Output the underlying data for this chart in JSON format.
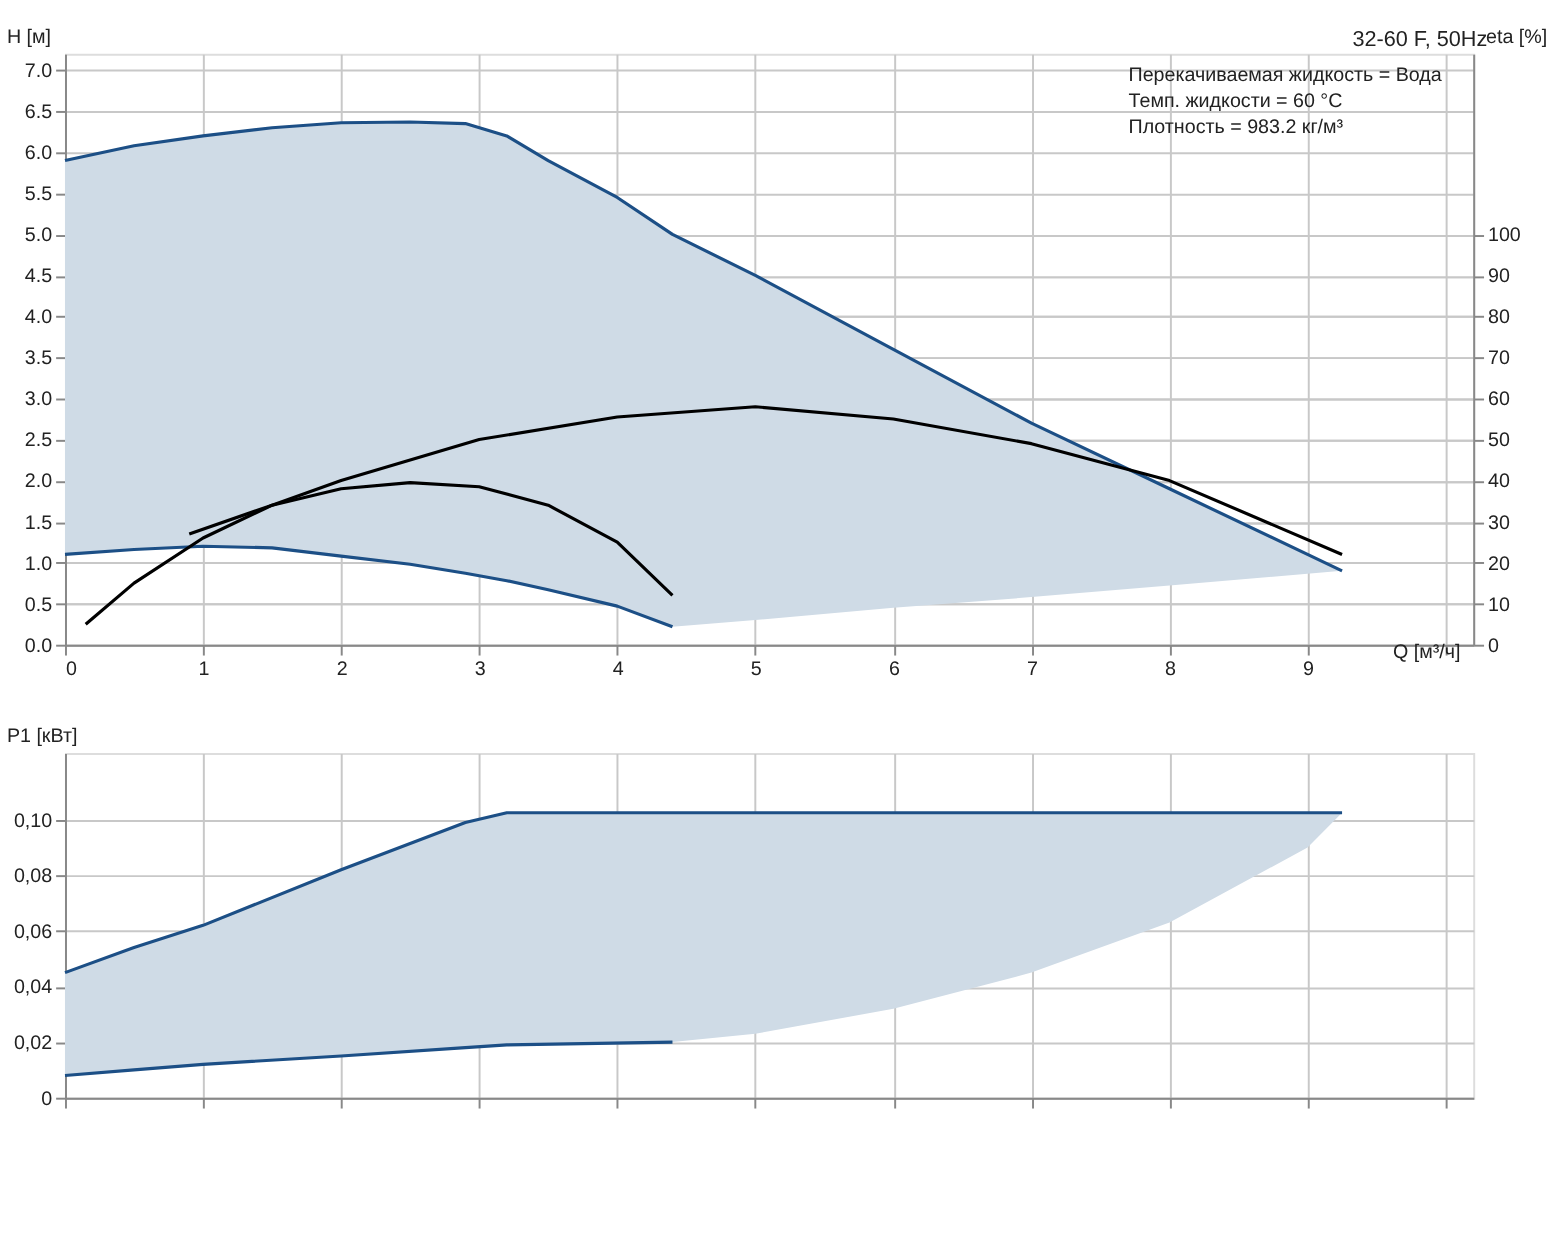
{
  "chart_data": [
    {
      "type": "line",
      "title": "32-60 F, 50Hz",
      "xlabel": "Q [м³/ч]",
      "ylabel": "H [м]",
      "y2label": "eta [%]",
      "annotations": [
        "Перекачиваемая жидкость = Вода",
        "Темп. жидкости = 60 °C",
        "Плотность = 983.2 кг/м³"
      ],
      "xlim": [
        0,
        10.2
      ],
      "xticks": [
        0,
        1,
        2,
        3,
        4,
        5,
        6,
        7,
        8,
        9,
        {
          "value": 10,
          "label": null
        }
      ],
      "ylim": [
        0,
        7.2
      ],
      "yticks": [
        {
          "value": 0,
          "label": "0.0"
        },
        0.5,
        {
          "value": 1,
          "label": "1.0"
        },
        1.5,
        {
          "value": 2,
          "label": "2.0"
        },
        2.5,
        {
          "value": 3,
          "label": "3.0"
        },
        3.5,
        {
          "value": 4,
          "label": "4.0"
        },
        4.5,
        {
          "value": 5,
          "label": "5.0"
        },
        5.5,
        {
          "value": 6,
          "label": "6.0"
        },
        6.5,
        {
          "value": 7,
          "label": "7.0"
        }
      ],
      "y2lim": [
        0,
        144
      ],
      "y2ticks": [
        0,
        10,
        20,
        30,
        40,
        50,
        60,
        70,
        80,
        90,
        100
      ],
      "grid": true,
      "legend": false,
      "marker": "none",
      "line_style": "solid",
      "series": [
        {
          "color": "#1c4f86",
          "x": [
            0,
            0.5,
            1,
            1.5,
            2,
            2.5,
            2.9,
            3.2,
            3.5,
            4,
            4.4,
            5,
            6,
            7,
            8,
            9.25
          ],
          "values": [
            5.9,
            6.08,
            6.2,
            6.3,
            6.36,
            6.37,
            6.35,
            6.2,
            5.9,
            5.45,
            5.0,
            4.5,
            3.6,
            2.7,
            1.9,
            0.9
          ],
          "lower": [
            1.1,
            1.16,
            1.2,
            1.18,
            1.08,
            0.98,
            0.87,
            0.78,
            0.67,
            0.47,
            0.22,
            0.3,
            0.45,
            0.58,
            0.72,
            0.9
          ],
          "upper": [
            5.9,
            6.08,
            6.2,
            6.3,
            6.36,
            6.37,
            6.35,
            6.2,
            5.9,
            5.45,
            5.0,
            4.5,
            3.6,
            2.7,
            1.9,
            0.9
          ]
        },
        {
          "color": "#1c4f86",
          "x": [
            0,
            0.5,
            1,
            1.5,
            2,
            2.5,
            2.9,
            3.2,
            3.5,
            4,
            4.4
          ],
          "values": [
            1.1,
            1.16,
            1.2,
            1.18,
            1.08,
            0.98,
            0.87,
            0.78,
            0.67,
            0.47,
            0.22
          ]
        },
        {
          "color": "#000000",
          "axis": "y2",
          "x": [
            0.15,
            0.5,
            1,
            1.5,
            2,
            3,
            4,
            5,
            6,
            7,
            8,
            9.25
          ],
          "values": [
            5,
            15,
            26,
            34,
            40,
            50,
            55.5,
            58,
            55,
            49,
            40,
            22
          ]
        },
        {
          "color": "#000000",
          "axis": "y2",
          "x": [
            0.9,
            1.5,
            2,
            2.5,
            3,
            3.5,
            4,
            4.4
          ],
          "values": [
            27,
            34,
            38,
            39.5,
            38.5,
            34,
            25,
            12
          ]
        }
      ]
    },
    {
      "type": "line",
      "ylabel": "P1 [кВт]",
      "tick_labels": "y",
      "xlim": [
        0,
        10.2
      ],
      "xticks": [
        0,
        1,
        2,
        3,
        4,
        5,
        6,
        7,
        8,
        9,
        10
      ],
      "ylim": [
        0,
        0.124
      ],
      "yticks": [
        {
          "value": 0,
          "label": "0"
        },
        {
          "value": 0.02,
          "label": "0,02"
        },
        {
          "value": 0.04,
          "label": "0,04"
        },
        {
          "value": 0.06,
          "label": "0,06"
        },
        {
          "value": 0.08,
          "label": "0,08"
        },
        {
          "value": 0.1,
          "label": "0,10"
        }
      ],
      "grid": true,
      "legend": false,
      "marker": "none",
      "line_style": "solid",
      "series": [
        {
          "color": "#1c4f86",
          "x": [
            0,
            0.5,
            1,
            2,
            2.9,
            3.2,
            4.4,
            5,
            6,
            7,
            8,
            9,
            9.25
          ],
          "values": [
            0.045,
            0.054,
            0.062,
            0.082,
            0.099,
            0.1025,
            0.1025,
            0.1025,
            0.1025,
            0.1025,
            0.1025,
            0.1025,
            0.1025
          ],
          "lower": [
            0.008,
            0.01,
            0.012,
            0.015,
            0.018,
            0.019,
            0.02,
            0.023,
            0.032,
            0.045,
            0.063,
            0.09,
            0.1025
          ],
          "upper": [
            0.045,
            0.054,
            0.062,
            0.082,
            0.099,
            0.1025,
            0.1025,
            0.1025,
            0.1025,
            0.1025,
            0.1025,
            0.1025,
            0.1025
          ]
        },
        {
          "color": "#1c4f86",
          "x": [
            0,
            0.5,
            1,
            2,
            2.9,
            3.2,
            4.4
          ],
          "values": [
            0.008,
            0.01,
            0.012,
            0.015,
            0.018,
            0.019,
            0.02
          ]
        }
      ]
    }
  ]
}
